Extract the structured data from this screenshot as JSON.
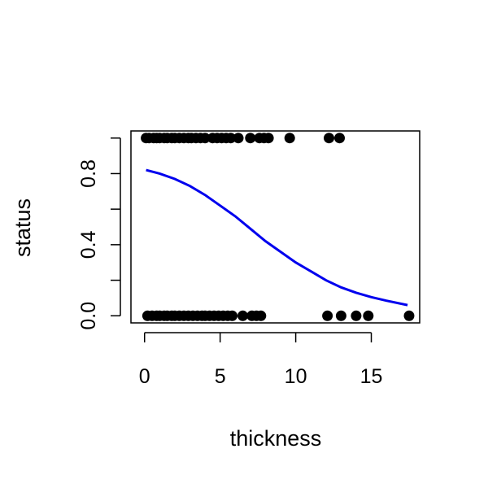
{
  "chart_data": {
    "type": "scatter",
    "xlabel": "thickness",
    "ylabel": "status",
    "xlim": [
      -0.9,
      18.2
    ],
    "ylim": [
      -0.04,
      1.04
    ],
    "x_ticks": [
      0,
      5,
      10,
      15
    ],
    "y_ticks": [
      0.0,
      0.2,
      0.4,
      0.6,
      0.8,
      1.0
    ],
    "y_tick_labels": [
      {
        "value": 0.0,
        "label": "0.0"
      },
      {
        "value": 0.4,
        "label": "0.4"
      },
      {
        "value": 0.8,
        "label": "0.8"
      }
    ],
    "x_tick_labels": [
      {
        "value": 0,
        "label": "0"
      },
      {
        "value": 5,
        "label": "5"
      },
      {
        "value": 10,
        "label": "10"
      },
      {
        "value": 15,
        "label": "15"
      }
    ],
    "grid": false,
    "point_color": "#000000",
    "curve_color": "#0000ee",
    "points": [
      {
        "x": 0.1,
        "y": 1
      },
      {
        "x": 0.3,
        "y": 1
      },
      {
        "x": 0.6,
        "y": 1
      },
      {
        "x": 0.8,
        "y": 1
      },
      {
        "x": 1.0,
        "y": 1
      },
      {
        "x": 1.3,
        "y": 1
      },
      {
        "x": 1.5,
        "y": 1
      },
      {
        "x": 1.8,
        "y": 1
      },
      {
        "x": 2.0,
        "y": 1
      },
      {
        "x": 2.3,
        "y": 1
      },
      {
        "x": 2.6,
        "y": 1
      },
      {
        "x": 2.9,
        "y": 1
      },
      {
        "x": 3.1,
        "y": 1
      },
      {
        "x": 3.4,
        "y": 1
      },
      {
        "x": 3.7,
        "y": 1
      },
      {
        "x": 4.0,
        "y": 1
      },
      {
        "x": 4.5,
        "y": 1
      },
      {
        "x": 4.8,
        "y": 1
      },
      {
        "x": 5.1,
        "y": 1
      },
      {
        "x": 5.4,
        "y": 1
      },
      {
        "x": 5.7,
        "y": 1
      },
      {
        "x": 6.2,
        "y": 1
      },
      {
        "x": 7.0,
        "y": 1
      },
      {
        "x": 7.6,
        "y": 1
      },
      {
        "x": 7.9,
        "y": 1
      },
      {
        "x": 8.2,
        "y": 1
      },
      {
        "x": 9.6,
        "y": 1
      },
      {
        "x": 12.2,
        "y": 1
      },
      {
        "x": 12.9,
        "y": 1
      },
      {
        "x": 0.2,
        "y": 0
      },
      {
        "x": 0.5,
        "y": 0
      },
      {
        "x": 0.8,
        "y": 0
      },
      {
        "x": 1.0,
        "y": 0
      },
      {
        "x": 1.3,
        "y": 0
      },
      {
        "x": 1.5,
        "y": 0
      },
      {
        "x": 1.8,
        "y": 0
      },
      {
        "x": 2.0,
        "y": 0
      },
      {
        "x": 2.3,
        "y": 0
      },
      {
        "x": 2.6,
        "y": 0
      },
      {
        "x": 2.9,
        "y": 0
      },
      {
        "x": 3.2,
        "y": 0
      },
      {
        "x": 3.5,
        "y": 0
      },
      {
        "x": 3.8,
        "y": 0
      },
      {
        "x": 4.0,
        "y": 0
      },
      {
        "x": 4.3,
        "y": 0
      },
      {
        "x": 4.6,
        "y": 0
      },
      {
        "x": 4.9,
        "y": 0
      },
      {
        "x": 5.2,
        "y": 0
      },
      {
        "x": 5.5,
        "y": 0
      },
      {
        "x": 5.8,
        "y": 0
      },
      {
        "x": 6.5,
        "y": 0
      },
      {
        "x": 7.1,
        "y": 0
      },
      {
        "x": 7.4,
        "y": 0
      },
      {
        "x": 7.7,
        "y": 0
      },
      {
        "x": 12.1,
        "y": 0
      },
      {
        "x": 13.0,
        "y": 0
      },
      {
        "x": 14.0,
        "y": 0
      },
      {
        "x": 14.8,
        "y": 0
      },
      {
        "x": 17.5,
        "y": 0
      }
    ],
    "fitted_curve": [
      {
        "x": 0.1,
        "y": 0.82
      },
      {
        "x": 1.0,
        "y": 0.8
      },
      {
        "x": 2.0,
        "y": 0.77
      },
      {
        "x": 3.0,
        "y": 0.73
      },
      {
        "x": 4.0,
        "y": 0.68
      },
      {
        "x": 5.0,
        "y": 0.62
      },
      {
        "x": 6.0,
        "y": 0.56
      },
      {
        "x": 7.0,
        "y": 0.49
      },
      {
        "x": 8.0,
        "y": 0.42
      },
      {
        "x": 9.0,
        "y": 0.36
      },
      {
        "x": 10.0,
        "y": 0.3
      },
      {
        "x": 11.0,
        "y": 0.25
      },
      {
        "x": 12.0,
        "y": 0.2
      },
      {
        "x": 13.0,
        "y": 0.16
      },
      {
        "x": 14.0,
        "y": 0.13
      },
      {
        "x": 15.0,
        "y": 0.105
      },
      {
        "x": 16.0,
        "y": 0.085
      },
      {
        "x": 17.4,
        "y": 0.06
      }
    ]
  }
}
